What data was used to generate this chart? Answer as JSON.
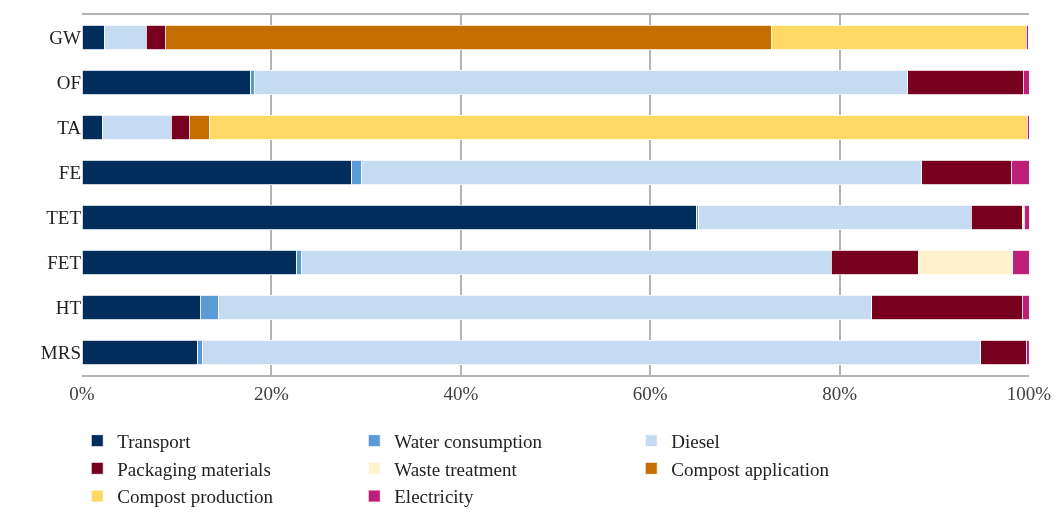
{
  "chart_data": {
    "type": "bar",
    "orientation": "horizontal",
    "stacked": true,
    "categories": [
      "GW",
      "OF",
      "TA",
      "FE",
      "TET",
      "FET",
      "HT",
      "MRS"
    ],
    "series": [
      {
        "name": "Transport",
        "color": "#002d5c",
        "values": [
          2.4,
          17.8,
          2.2,
          28.5,
          64.9,
          22.7,
          12.5,
          12.2
        ]
      },
      {
        "name": "Water consumption",
        "color": "#5b9bd5",
        "values": [
          null,
          0.4,
          null,
          1.0,
          0.2,
          0.5,
          1.9,
          0.5
        ]
      },
      {
        "name": "Diesel",
        "color": "#c5dbf2",
        "values": [
          4.4,
          69.0,
          7.2,
          59.2,
          28.8,
          55.9,
          69.0,
          82.2
        ]
      },
      {
        "name": "Packaging materials",
        "color": "#76001e",
        "values": [
          2.0,
          12.2,
          1.9,
          9.4,
          5.4,
          9.2,
          15.9,
          4.8
        ]
      },
      {
        "name": "Waste treatment",
        "color": "#fff2cc",
        "values": [
          null,
          null,
          null,
          null,
          0.2,
          10.0,
          null,
          null
        ]
      },
      {
        "name": "Compost application",
        "color": "#c56e00",
        "values": [
          64.0,
          null,
          2.2,
          null,
          null,
          null,
          null,
          null
        ]
      },
      {
        "name": "Compost production",
        "color": "#ffd966",
        "values": [
          26.9,
          null,
          86.3,
          null,
          null,
          null,
          null,
          null
        ]
      },
      {
        "name": "Electricity",
        "color": "#be1f78",
        "values": [
          0.2,
          0.6,
          0.2,
          1.9,
          0.5,
          1.7,
          0.7,
          0.3
        ]
      }
    ],
    "xlim": [
      0,
      100
    ],
    "xticks": [
      {
        "value": 0,
        "label": "0%"
      },
      {
        "value": 20,
        "label": "20%"
      },
      {
        "value": 40,
        "label": "40%"
      },
      {
        "value": 60,
        "label": "60%"
      },
      {
        "value": 80,
        "label": "80%"
      },
      {
        "value": 100,
        "label": "100%"
      }
    ],
    "grid": "x",
    "legend": "bottom"
  }
}
